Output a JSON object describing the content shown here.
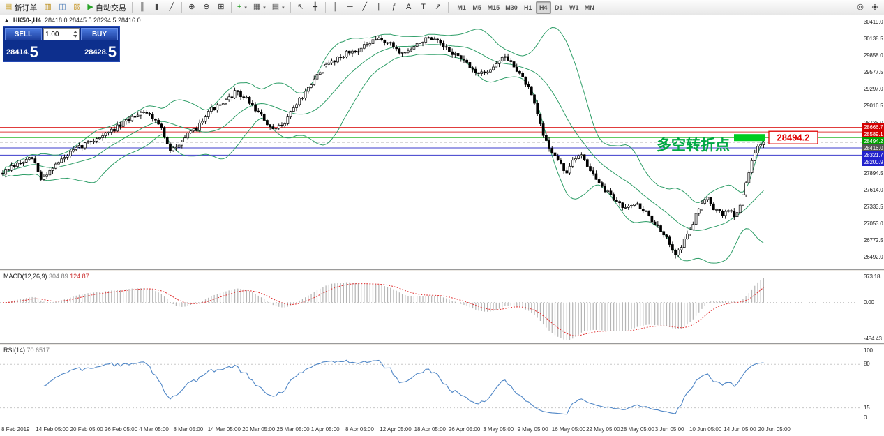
{
  "toolbar": {
    "items": [
      {
        "type": "button",
        "name": "new-order-button",
        "glyph": "▤",
        "glyph_color": "#caa22e",
        "label": "新订单"
      },
      {
        "type": "button",
        "name": "charts-button",
        "glyph": "▥",
        "glyph_color": "#b8860b"
      },
      {
        "type": "button",
        "name": "profiles-button",
        "glyph": "◫",
        "glyph_color": "#4a7ab5"
      },
      {
        "type": "button",
        "name": "strategy-tester-button",
        "glyph": "▨",
        "glyph_color": "#c99a2e"
      },
      {
        "type": "button",
        "name": "autotrading-button",
        "glyph": "▶",
        "glyph_color": "#27a327",
        "label": "自动交易"
      },
      {
        "type": "sep"
      },
      {
        "type": "button",
        "name": "bar-chart-button",
        "glyph": "║",
        "glyph_color": "#444"
      },
      {
        "type": "button",
        "name": "candlestick-chart-button",
        "glyph": "▮",
        "glyph_color": "#444"
      },
      {
        "type": "button",
        "name": "line-chart-button",
        "glyph": "╱",
        "glyph_color": "#444"
      },
      {
        "type": "sep"
      },
      {
        "type": "button",
        "name": "zoom-in-button",
        "glyph": "⊕",
        "glyph_color": "#333"
      },
      {
        "type": "button",
        "name": "zoom-out-button",
        "glyph": "⊖",
        "glyph_color": "#333"
      },
      {
        "type": "button",
        "name": "tile-windows-button",
        "glyph": "⊞",
        "glyph_color": "#333"
      },
      {
        "type": "sep"
      },
      {
        "type": "button",
        "name": "indicators-button",
        "glyph": "+",
        "glyph_color": "#1e9e1e",
        "dropdown": true
      },
      {
        "type": "button",
        "name": "periods-button",
        "glyph": "▦",
        "glyph_color": "#555",
        "dropdown": true
      },
      {
        "type": "button",
        "name": "templates-button",
        "glyph": "▤",
        "glyph_color": "#555",
        "dropdown": true
      },
      {
        "type": "sep"
      },
      {
        "type": "button",
        "name": "cursor-button",
        "glyph": "↖",
        "glyph_color": "#333"
      },
      {
        "type": "button",
        "name": "crosshair-button",
        "glyph": "╋",
        "glyph_color": "#333"
      },
      {
        "type": "sep"
      },
      {
        "type": "button",
        "name": "vertical-line-button",
        "glyph": "│",
        "glyph_color": "#333"
      },
      {
        "type": "button",
        "name": "horizontal-line-button",
        "glyph": "─",
        "glyph_color": "#333"
      },
      {
        "type": "button",
        "name": "trendline-button",
        "glyph": "╱",
        "glyph_color": "#333"
      },
      {
        "type": "button",
        "name": "channel-button",
        "glyph": "∥",
        "glyph_color": "#333"
      },
      {
        "type": "button",
        "name": "fibonacci-button",
        "glyph": "ƒ",
        "glyph_color": "#333"
      },
      {
        "type": "button",
        "name": "text-button",
        "glyph": "A",
        "glyph_color": "#333"
      },
      {
        "type": "button",
        "name": "label-button",
        "glyph": "T",
        "glyph_color": "#333"
      },
      {
        "type": "button",
        "name": "arrows-button",
        "glyph": "↗",
        "glyph_color": "#333"
      },
      {
        "type": "sep"
      }
    ],
    "timeframes": [
      "M1",
      "M5",
      "M15",
      "M30",
      "H1",
      "H4",
      "D1",
      "W1",
      "MN"
    ],
    "active_timeframe": "H4",
    "right_items": [
      {
        "type": "button",
        "name": "search-button",
        "glyph": "◎",
        "glyph_color": "#333"
      },
      {
        "type": "button",
        "name": "chart-properties-button",
        "glyph": "◈",
        "glyph_color": "#333"
      }
    ]
  },
  "chart": {
    "symbol_marker": "▲",
    "symbol_label": "HK50-,H4",
    "ohlc_text": "28418.0 28445.5 28294.5 28416.0",
    "trade_panel": {
      "sell_label": "SELL",
      "buy_label": "BUY",
      "volume": "1.00",
      "sell_price_small": "28414.",
      "sell_price_big": "5",
      "buy_price_small": "28428.",
      "buy_price_big": "5"
    },
    "scale": {
      "max": 30540,
      "min": 26290
    },
    "axis_ticks": [
      "30419.0",
      "30138.5",
      "29858.0",
      "29577.5",
      "29297.0",
      "29016.5",
      "28736.0",
      "28455.5",
      "28175.0",
      "27894.5",
      "27614.0",
      "27333.5",
      "27053.0",
      "26772.5",
      "26492.0"
    ],
    "hlines": [
      {
        "price": 28666.7,
        "color": "#e03c3c",
        "label_bg": "#d40000"
      },
      {
        "price": 28589.1,
        "color": "#e03c3c",
        "label_bg": "#d40000"
      },
      {
        "price": 28494.2,
        "color": "#2eb82e",
        "label_bg": "#00a000"
      },
      {
        "price": 28321.7,
        "color": "#3c3ccc",
        "label_bg": "#2222cc"
      },
      {
        "price": 28200.9,
        "color": "#3c3ccc",
        "label_bg": "#2222cc"
      }
    ],
    "current_price": {
      "value": 28416.0,
      "label_bg": "#555555"
    },
    "annotation": {
      "text": "多空转折点",
      "color": "#00a844",
      "price": 28494.2
    },
    "highlight": {
      "price": 28494.2,
      "color": "#00cc22"
    },
    "price_flag": {
      "text": "28494.2",
      "color": "#e00000"
    },
    "bollinger_color": "#2f9e68",
    "candle_up_fill": "#ffffff",
    "candle_down_fill": "#000000",
    "candle_stroke": "#000000",
    "candles": 260,
    "price_path": [
      [
        0,
        27900
      ],
      [
        0.02,
        28050
      ],
      [
        0.04,
        28150
      ],
      [
        0.05,
        27780
      ],
      [
        0.065,
        28000
      ],
      [
        0.09,
        28250
      ],
      [
        0.11,
        28400
      ],
      [
        0.135,
        28550
      ],
      [
        0.155,
        28700
      ],
      [
        0.175,
        28880
      ],
      [
        0.185,
        28950
      ],
      [
        0.205,
        28750
      ],
      [
        0.22,
        28250
      ],
      [
        0.235,
        28450
      ],
      [
        0.255,
        28650
      ],
      [
        0.27,
        28950
      ],
      [
        0.29,
        29050
      ],
      [
        0.305,
        29250
      ],
      [
        0.32,
        29150
      ],
      [
        0.34,
        28850
      ],
      [
        0.355,
        28600
      ],
      [
        0.37,
        28750
      ],
      [
        0.385,
        29050
      ],
      [
        0.405,
        29350
      ],
      [
        0.415,
        29600
      ],
      [
        0.43,
        29750
      ],
      [
        0.45,
        29900
      ],
      [
        0.465,
        29950
      ],
      [
        0.48,
        30050
      ],
      [
        0.495,
        30150
      ],
      [
        0.51,
        30050
      ],
      [
        0.525,
        29900
      ],
      [
        0.54,
        30000
      ],
      [
        0.555,
        30150
      ],
      [
        0.57,
        30100
      ],
      [
        0.585,
        29950
      ],
      [
        0.6,
        29850
      ],
      [
        0.615,
        29650
      ],
      [
        0.63,
        29550
      ],
      [
        0.645,
        29700
      ],
      [
        0.66,
        29850
      ],
      [
        0.675,
        29650
      ],
      [
        0.69,
        29350
      ],
      [
        0.7,
        29000
      ],
      [
        0.71,
        28550
      ],
      [
        0.72,
        28300
      ],
      [
        0.73,
        28100
      ],
      [
        0.74,
        27900
      ],
      [
        0.75,
        28100
      ],
      [
        0.76,
        28250
      ],
      [
        0.77,
        28000
      ],
      [
        0.785,
        27700
      ],
      [
        0.8,
        27500
      ],
      [
        0.815,
        27350
      ],
      [
        0.83,
        27400
      ],
      [
        0.845,
        27250
      ],
      [
        0.86,
        27000
      ],
      [
        0.875,
        26750
      ],
      [
        0.885,
        26550
      ],
      [
        0.895,
        26750
      ],
      [
        0.905,
        27000
      ],
      [
        0.915,
        27300
      ],
      [
        0.925,
        27550
      ],
      [
        0.935,
        27300
      ],
      [
        0.945,
        27200
      ],
      [
        0.955,
        27300
      ],
      [
        0.962,
        27150
      ],
      [
        0.97,
        27400
      ],
      [
        0.98,
        27900
      ],
      [
        0.99,
        28300
      ],
      [
        1,
        28416
      ]
    ]
  },
  "macd": {
    "label": "MACD(12,26,9)",
    "main_value": "304.89",
    "signal_value": "124.87",
    "axis_top": "373.18",
    "axis_zero": "0.00",
    "axis_bottom": "-484.43",
    "axis_max": 373.18,
    "axis_min": -484.43,
    "histogram_color": "#b4b4b4",
    "signal_color": "#e03030"
  },
  "rsi": {
    "label": "RSI(14)",
    "value": "70.6517",
    "line_color": "#4f86c6",
    "levels": [
      80,
      15
    ],
    "axis_labels": [
      {
        "text": "100",
        "v": 100
      },
      {
        "text": "80",
        "v": 80
      },
      {
        "text": "15",
        "v": 15
      },
      {
        "text": "0",
        "v": 0
      }
    ]
  },
  "time_axis": {
    "labels": [
      "8 Feb 2019",
      "14 Feb 05:00",
      "20 Feb 05:00",
      "26 Feb 05:00",
      "4 Mar 05:00",
      "8 Mar 05:00",
      "14 Mar 05:00",
      "20 Mar 05:00",
      "26 Mar 05:00",
      "1 Apr 05:00",
      "8 Apr 05:00",
      "12 Apr 05:00",
      "18 Apr 05:00",
      "26 Apr 05:00",
      "3 May 05:00",
      "9 May 05:00",
      "16 May 05:00",
      "22 May 05:00",
      "28 May 05:00",
      "3 Jun 05:00",
      "10 Jun 05:00",
      "14 Jun 05:00",
      "20 Jun 05:00"
    ]
  }
}
